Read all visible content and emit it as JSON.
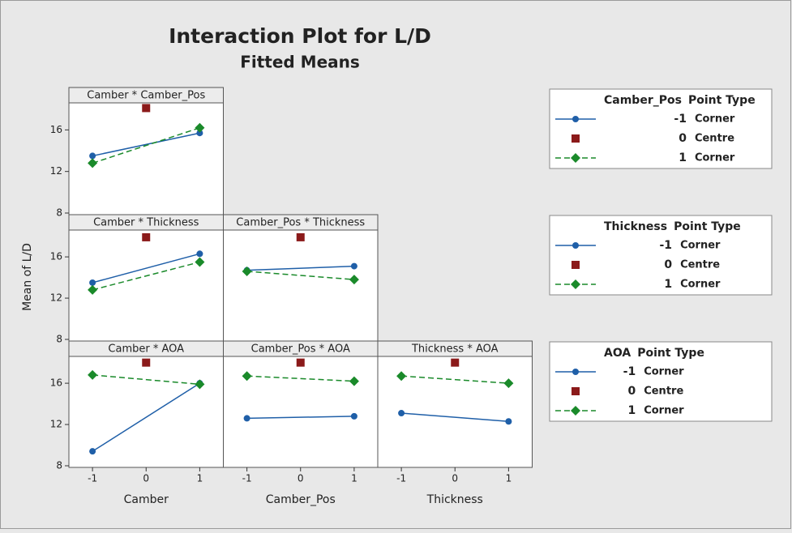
{
  "title": "Interaction Plot for L/D",
  "subtitle": "Fitted Means",
  "ylabel": "Mean of L/D",
  "chart_data": [
    {
      "type": "line",
      "title": "Camber * Camber_Pos",
      "xlim": [
        -1.44,
        1.44
      ],
      "ylim": [
        8,
        18.6
      ],
      "yticks": [
        8,
        12,
        16
      ],
      "series": [
        {
          "color": "#1f5fa8",
          "marker": "circle",
          "dash": false,
          "x": [
            -1,
            1
          ],
          "values": [
            13.5,
            15.7
          ]
        },
        {
          "color": "#8b1a1a",
          "marker": "square",
          "dash": false,
          "x": [
            0
          ],
          "values": [
            18.1
          ]
        },
        {
          "color": "#1a8a2a",
          "marker": "diamond",
          "dash": true,
          "x": [
            -1,
            1
          ],
          "values": [
            12.8,
            16.2
          ]
        }
      ]
    },
    {
      "type": "line",
      "title": "Camber * Thickness",
      "xlim": [
        -1.44,
        1.44
      ],
      "ylim": [
        8,
        18.6
      ],
      "yticks": [
        8,
        12,
        16
      ],
      "series": [
        {
          "color": "#1f5fa8",
          "marker": "circle",
          "dash": false,
          "x": [
            -1,
            1
          ],
          "values": [
            13.5,
            16.3
          ]
        },
        {
          "color": "#8b1a1a",
          "marker": "square",
          "dash": false,
          "x": [
            0
          ],
          "values": [
            17.9
          ]
        },
        {
          "color": "#1a8a2a",
          "marker": "diamond",
          "dash": true,
          "x": [
            -1,
            1
          ],
          "values": [
            12.8,
            15.5
          ]
        }
      ]
    },
    {
      "type": "line",
      "title": "Camber_Pos * Thickness",
      "xlim": [
        -1.44,
        1.44
      ],
      "ylim": [
        8,
        18.6
      ],
      "series": [
        {
          "color": "#1f5fa8",
          "marker": "circle",
          "dash": false,
          "x": [
            -1,
            1
          ],
          "values": [
            14.7,
            15.1
          ]
        },
        {
          "color": "#8b1a1a",
          "marker": "square",
          "dash": false,
          "x": [
            0
          ],
          "values": [
            17.9
          ]
        },
        {
          "color": "#1a8a2a",
          "marker": "diamond",
          "dash": true,
          "x": [
            -1,
            1
          ],
          "values": [
            14.6,
            13.8
          ]
        }
      ]
    },
    {
      "type": "line",
      "title": "Camber * AOA",
      "xlim": [
        -1.44,
        1.44
      ],
      "ylim": [
        8,
        18.6
      ],
      "yticks": [
        8,
        12,
        16
      ],
      "xticks": [
        -1,
        0,
        1
      ],
      "xlabel": "Camber",
      "series": [
        {
          "color": "#1f5fa8",
          "marker": "circle",
          "dash": false,
          "x": [
            -1,
            1
          ],
          "values": [
            9.4,
            16.0
          ]
        },
        {
          "color": "#8b1a1a",
          "marker": "square",
          "dash": false,
          "x": [
            0
          ],
          "values": [
            18.0
          ]
        },
        {
          "color": "#1a8a2a",
          "marker": "diamond",
          "dash": true,
          "x": [
            -1,
            1
          ],
          "values": [
            16.8,
            15.9
          ]
        }
      ]
    },
    {
      "type": "line",
      "title": "Camber_Pos * AOA",
      "xlim": [
        -1.44,
        1.44
      ],
      "ylim": [
        8,
        18.6
      ],
      "xticks": [
        -1,
        0,
        1
      ],
      "xlabel": "Camber_Pos",
      "series": [
        {
          "color": "#1f5fa8",
          "marker": "circle",
          "dash": false,
          "x": [
            -1,
            1
          ],
          "values": [
            12.6,
            12.8
          ]
        },
        {
          "color": "#8b1a1a",
          "marker": "square",
          "dash": false,
          "x": [
            0
          ],
          "values": [
            18.0
          ]
        },
        {
          "color": "#1a8a2a",
          "marker": "diamond",
          "dash": true,
          "x": [
            -1,
            1
          ],
          "values": [
            16.7,
            16.2
          ]
        }
      ]
    },
    {
      "type": "line",
      "title": "Thickness * AOA",
      "xlim": [
        -1.44,
        1.44
      ],
      "ylim": [
        8,
        18.6
      ],
      "xticks": [
        -1,
        0,
        1
      ],
      "xlabel": "Thickness",
      "series": [
        {
          "color": "#1f5fa8",
          "marker": "circle",
          "dash": false,
          "x": [
            -1,
            1
          ],
          "values": [
            13.1,
            12.3
          ]
        },
        {
          "color": "#8b1a1a",
          "marker": "square",
          "dash": false,
          "x": [
            0
          ],
          "values": [
            18.0
          ]
        },
        {
          "color": "#1a8a2a",
          "marker": "diamond",
          "dash": true,
          "x": [
            -1,
            1
          ],
          "values": [
            16.7,
            16.0
          ]
        }
      ]
    }
  ],
  "legends": [
    {
      "title": "Camber_Pos",
      "header": "Point Type",
      "entries": [
        {
          "level": "-1",
          "point_type": "Corner",
          "color": "#1f5fa8",
          "marker": "circle",
          "dash": false
        },
        {
          "level": "0",
          "point_type": "Centre",
          "color": "#8b1a1a",
          "marker": "square",
          "dash": false
        },
        {
          "level": "1",
          "point_type": "Corner",
          "color": "#1a8a2a",
          "marker": "diamond",
          "dash": true
        }
      ]
    },
    {
      "title": "Thickness",
      "header": "Point Type",
      "entries": [
        {
          "level": "-1",
          "point_type": "Corner",
          "color": "#1f5fa8",
          "marker": "circle",
          "dash": false
        },
        {
          "level": "0",
          "point_type": "Centre",
          "color": "#8b1a1a",
          "marker": "square",
          "dash": false
        },
        {
          "level": "1",
          "point_type": "Corner",
          "color": "#1a8a2a",
          "marker": "diamond",
          "dash": true
        }
      ]
    },
    {
      "title": "AOA",
      "header": "Point Type",
      "entries": [
        {
          "level": "-1",
          "point_type": "Corner",
          "color": "#1f5fa8",
          "marker": "circle",
          "dash": false
        },
        {
          "level": "0",
          "point_type": "Centre",
          "color": "#8b1a1a",
          "marker": "square",
          "dash": false
        },
        {
          "level": "1",
          "point_type": "Corner",
          "color": "#1a8a2a",
          "marker": "diamond",
          "dash": true
        }
      ]
    }
  ]
}
